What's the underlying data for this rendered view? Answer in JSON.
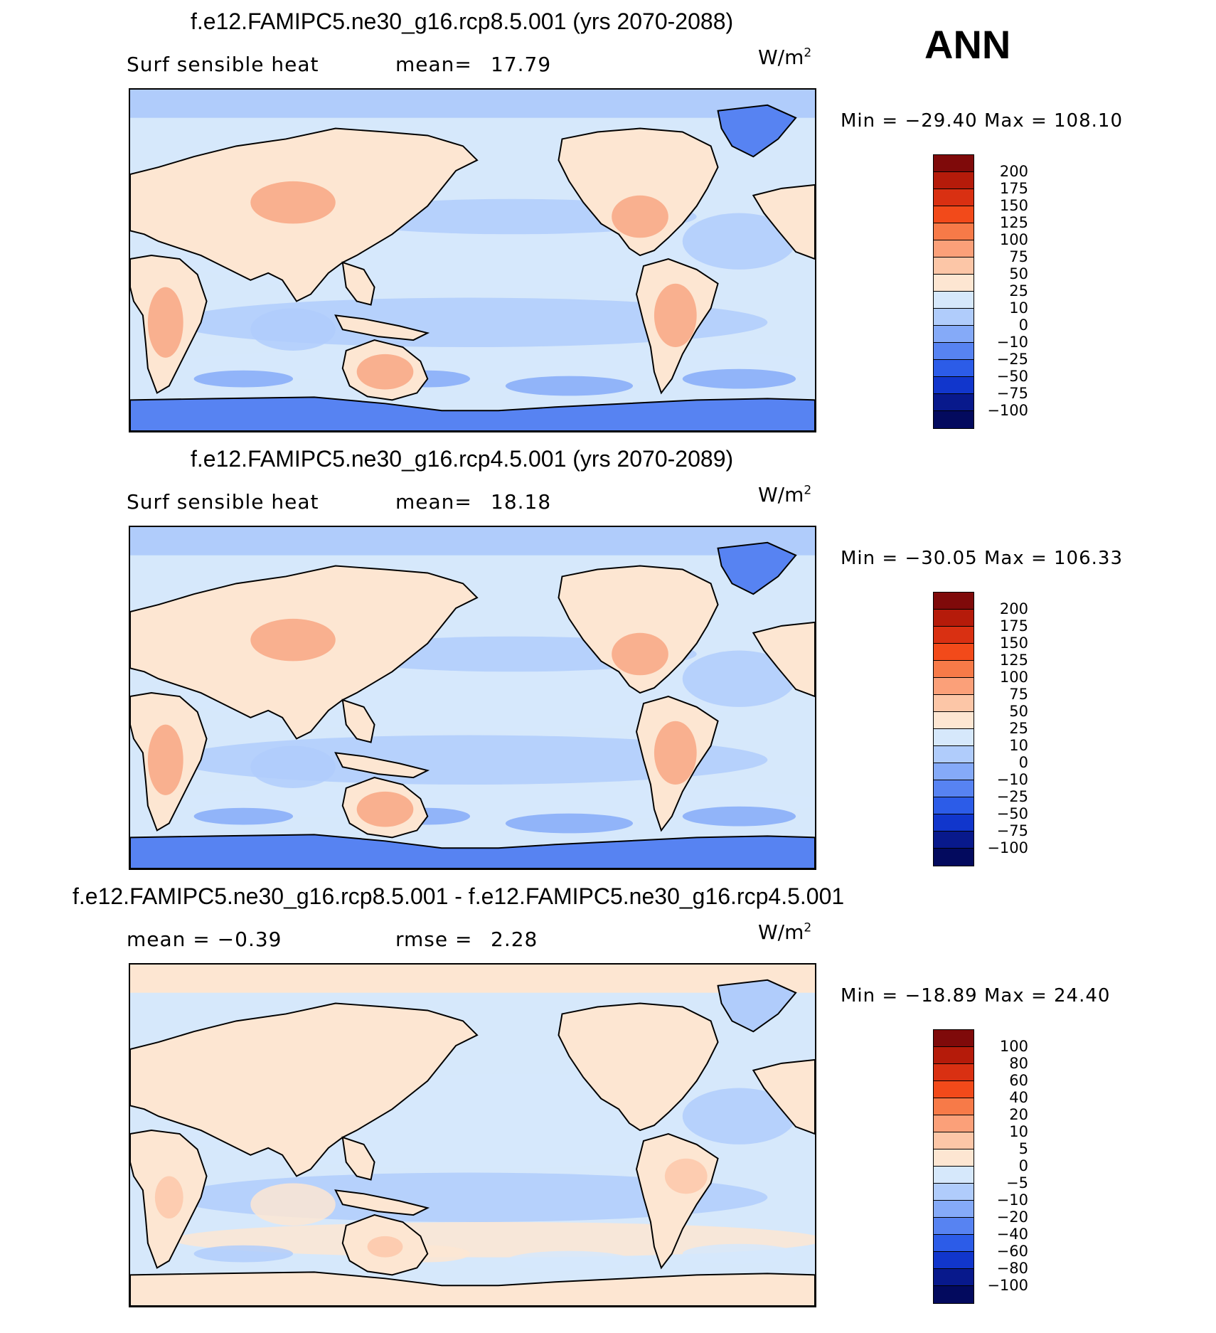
{
  "season": "ANN",
  "panels": [
    {
      "title": "f.e12.FAMIPC5.ne30_g16.rcp8.5.001 (yrs 2070-2088)",
      "left_label": "Surf sensible heat",
      "mid_label": "mean=",
      "mid_value": "17.79",
      "units_text": "W/m",
      "units_exp": "2",
      "min_label": "Min =",
      "min_value": "−29.40",
      "max_label": "Max =",
      "max_value": "108.10",
      "colorbar_labels": [
        "200",
        "175",
        "150",
        "125",
        "100",
        "75",
        "50",
        "25",
        "10",
        "0",
        "−10",
        "−25",
        "−50",
        "−75",
        "−100"
      ],
      "colorbar_colors": [
        "#7f0a0a",
        "#b51b0a",
        "#d93012",
        "#f24a1a",
        "#f77a48",
        "#fba079",
        "#fcc6a7",
        "#fde6d2",
        "#d6e8fb",
        "#b0ccfb",
        "#85aaf8",
        "#5783f2",
        "#2c5ce8",
        "#1136cc",
        "#08198c",
        "#030a5e"
      ]
    },
    {
      "title": "f.e12.FAMIPC5.ne30_g16.rcp4.5.001 (yrs 2070-2089)",
      "left_label": "Surf sensible heat",
      "mid_label": "mean=",
      "mid_value": "18.18",
      "units_text": "W/m",
      "units_exp": "2",
      "min_label": "Min =",
      "min_value": "−30.05",
      "max_label": "Max =",
      "max_value": "106.33",
      "colorbar_labels": [
        "200",
        "175",
        "150",
        "125",
        "100",
        "75",
        "50",
        "25",
        "10",
        "0",
        "−10",
        "−25",
        "−50",
        "−75",
        "−100"
      ],
      "colorbar_colors": [
        "#7f0a0a",
        "#b51b0a",
        "#d93012",
        "#f24a1a",
        "#f77a48",
        "#fba079",
        "#fcc6a7",
        "#fde6d2",
        "#d6e8fb",
        "#b0ccfb",
        "#85aaf8",
        "#5783f2",
        "#2c5ce8",
        "#1136cc",
        "#08198c",
        "#030a5e"
      ]
    },
    {
      "title": "f.e12.FAMIPC5.ne30_g16.rcp8.5.001 - f.e12.FAMIPC5.ne30_g16.rcp4.5.001",
      "left_label": "mean =  −0.39",
      "mid_label": "rmse =",
      "mid_value": "2.28",
      "units_text": "W/m",
      "units_exp": "2",
      "min_label": "Min =",
      "min_value": "−18.89",
      "max_label": "Max =",
      "max_value": "24.40",
      "colorbar_labels": [
        "100",
        "80",
        "60",
        "40",
        "20",
        "10",
        "5",
        "0",
        "−5",
        "−10",
        "−20",
        "−40",
        "−60",
        "−80",
        "−100"
      ],
      "colorbar_colors": [
        "#7f0a0a",
        "#b51b0a",
        "#d93012",
        "#f24a1a",
        "#f77a48",
        "#fba079",
        "#fcc6a7",
        "#fde6d2",
        "#d6e8fb",
        "#b0ccfb",
        "#85aaf8",
        "#5783f2",
        "#2c5ce8",
        "#1136cc",
        "#08198c",
        "#030a5e"
      ]
    }
  ],
  "map_colors": {
    "ocean_light": "#d6e8fb",
    "ocean_mid": "#b0ccfb",
    "ocean_dark": "#85aaf8",
    "ice": "#5783f2",
    "land_light": "#fde6d2",
    "land_warm": "#fcc6a7",
    "land_hot": "#f7a27e",
    "coast": "#000000"
  }
}
